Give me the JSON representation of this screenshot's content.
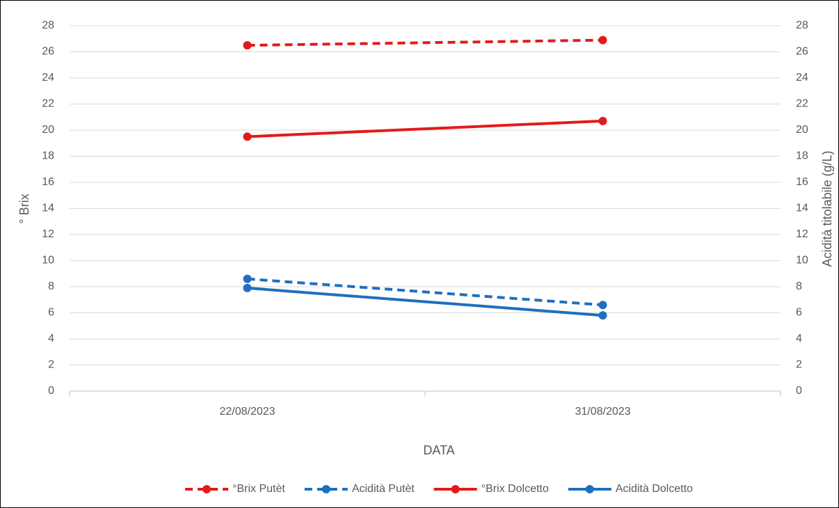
{
  "chart_data": {
    "type": "line",
    "categories": [
      "22/08/2023",
      "31/08/2023"
    ],
    "xlabel": "DATA",
    "ylabel": "° Brix",
    "y2label": "Acidità titolabile (g/L)",
    "ylim": [
      0,
      28
    ],
    "yticks": [
      0,
      2,
      4,
      6,
      8,
      10,
      12,
      14,
      16,
      18,
      20,
      22,
      24,
      26,
      28
    ],
    "y2lim": [
      0,
      28
    ],
    "y2ticks": [
      0,
      2,
      4,
      6,
      8,
      10,
      12,
      14,
      16,
      18,
      20,
      22,
      24,
      26,
      28
    ],
    "grid": true,
    "legend": "bottom",
    "series": [
      {
        "name": "°Brix Putèt",
        "color": "#e31a1c",
        "style": "dashed",
        "values": [
          26.5,
          26.9
        ]
      },
      {
        "name": "Acidità Putèt",
        "color": "#1f6fbf",
        "style": "dashed",
        "axis": "y2",
        "values": [
          8.6,
          6.6
        ]
      },
      {
        "name": "°Brix Dolcetto",
        "color": "#e31a1c",
        "style": "solid",
        "values": [
          19.5,
          20.7
        ]
      },
      {
        "name": "Acidità Dolcetto",
        "color": "#1f6fbf",
        "style": "solid",
        "axis": "y2",
        "values": [
          7.9,
          5.8
        ]
      }
    ]
  }
}
